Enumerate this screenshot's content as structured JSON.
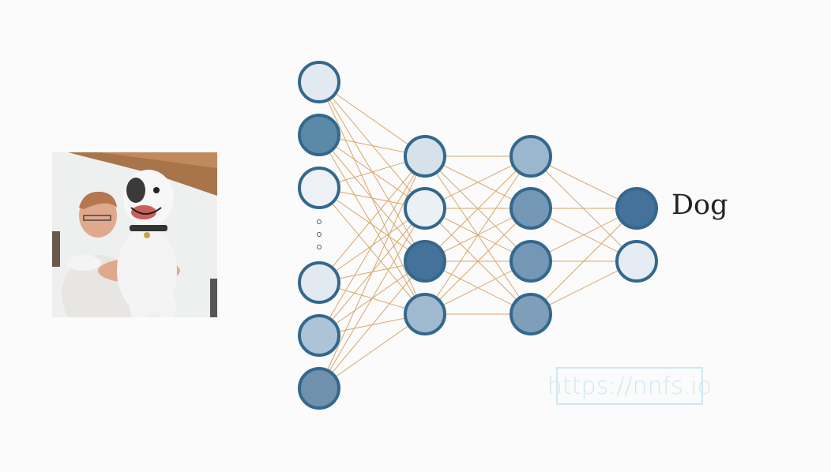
{
  "output_label": "Dog",
  "watermark": "https://nnfs.io",
  "colors": {
    "edge": "#d9a66a",
    "node_stroke": "#33688e",
    "background": "#fbfbfb"
  },
  "network": {
    "input_layer_fills": [
      "#e3e9f1",
      "#5b8aa8",
      "#edf1f6",
      "dots",
      "#e3e9f1",
      "#adc4d6",
      "#6f91ab"
    ],
    "hidden_layer_1_fills": [
      "#d6e1ea",
      "#ebf0f5",
      "#44729b",
      "#a0b9cf"
    ],
    "hidden_layer_2_fills": [
      "#9bb7ce",
      "#7397b5",
      "#7397b5",
      "#7e9eba"
    ],
    "output_layer_fills": [
      "#44729b",
      "#e6ecf3"
    ]
  }
}
